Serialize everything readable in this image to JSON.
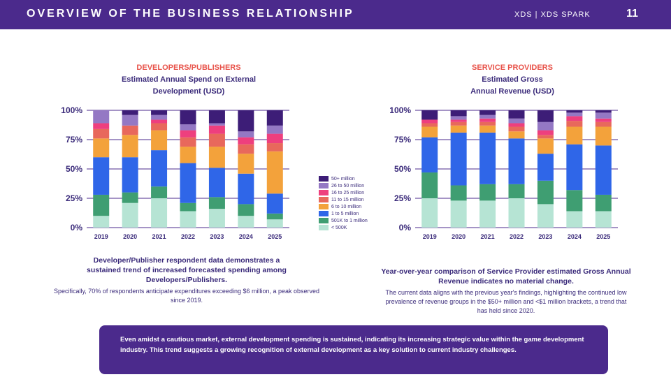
{
  "header": {
    "title": "OVERVIEW OF THE BUSINESS RELATIONSHIP",
    "brand": "XDS  |  XDS SPARK",
    "page_number": "11"
  },
  "colors": {
    "header_bg": "#4b2a8c",
    "category_title": "#e8534a",
    "heading_text": "#3a2a7a"
  },
  "left_panel": {
    "category": "DEVELOPERS/PUBLISHERS",
    "subtitle_line1": "Estimated Annual Spend on External",
    "subtitle_line2": "Development (USD)",
    "caption_bold": "Developer/Publisher respondent data demonstrates a sustained trend of increased forecasted spending among Developers/Publishers.",
    "caption_normal": "Specifically, 70% of respondents anticipate expenditures exceeding $6 million, a peak observed since 2019."
  },
  "right_panel": {
    "category": "SERVICE PROVIDERS",
    "subtitle_line1": "Estimated Gross",
    "subtitle_line2": "Annual Revenue (USD)",
    "caption_bold": "Year-over-year comparison of Service Provider estimated Gross Annual Revenue indicates no material change.",
    "caption_normal": "The current data aligns with the previous year's findings, highlighting the continued low prevalence of revenue groups in the $50+ million and <$1 million brackets, a trend that has held since 2020."
  },
  "legend": [
    {
      "label": "50+ million",
      "color": "#3d1d77"
    },
    {
      "label": "26 to 50 million",
      "color": "#9478c4"
    },
    {
      "label": "16 to 25 million",
      "color": "#ee3f7e"
    },
    {
      "label": "11 to 15 million",
      "color": "#e8685c"
    },
    {
      "label": "6 to 10 million",
      "color": "#f3a23b"
    },
    {
      "label": "1 to 5 million",
      "color": "#2f66e8"
    },
    {
      "label": "501K to 1 million",
      "color": "#3f9e72"
    },
    {
      "label": "< 500K",
      "color": "#b6e4d4"
    }
  ],
  "callout": {
    "text": "Even amidst a cautious market, external development spending is sustained, indicating its increasing strategic value within the game development industry. This trend suggests a growing recognition of external development as a key solution to current industry challenges."
  },
  "chart_data": [
    {
      "type": "bar",
      "stacked": true,
      "title": "Estimated Annual Spend on External Development (USD)",
      "categories": [
        "2019",
        "2020",
        "2021",
        "2022",
        "2023",
        "2024",
        "2025"
      ],
      "yticks": [
        "0%",
        "25%",
        "50%",
        "75%",
        "100%"
      ],
      "ylim": [
        0,
        100
      ],
      "series": [
        {
          "name": "< 500K",
          "values": [
            10,
            21,
            25,
            14,
            16,
            10,
            7
          ]
        },
        {
          "name": "501K to 1 million",
          "values": [
            18,
            9,
            10,
            7,
            10,
            10,
            5
          ]
        },
        {
          "name": "1 to 5 million",
          "values": [
            32,
            30,
            31,
            34,
            25,
            26,
            17
          ]
        },
        {
          "name": "6 to 10 million",
          "values": [
            16,
            19,
            17,
            14,
            18,
            17,
            36
          ]
        },
        {
          "name": "11 to 15 million",
          "values": [
            8,
            8,
            6,
            8,
            11,
            8,
            7
          ]
        },
        {
          "name": "16 to 25 million",
          "values": [
            5,
            0,
            3,
            6,
            7,
            6,
            8
          ]
        },
        {
          "name": "26 to 50 million",
          "values": [
            11,
            9,
            4,
            5,
            2,
            5,
            7
          ]
        },
        {
          "name": "50+ million",
          "values": [
            0,
            4,
            4,
            12,
            11,
            18,
            13
          ]
        }
      ]
    },
    {
      "type": "bar",
      "stacked": true,
      "title": "Estimated Gross Annual Revenue (USD)",
      "categories": [
        "2019",
        "2020",
        "2021",
        "2022",
        "2023",
        "2024",
        "2025"
      ],
      "yticks": [
        "0%",
        "25%",
        "50%",
        "75%",
        "100%"
      ],
      "ylim": [
        0,
        100
      ],
      "series": [
        {
          "name": "< 500K",
          "values": [
            25,
            23,
            23,
            25,
            20,
            14,
            14
          ]
        },
        {
          "name": "501K to 1 million",
          "values": [
            22,
            13,
            14,
            12,
            20,
            18,
            14
          ]
        },
        {
          "name": "1 to 5 million",
          "values": [
            30,
            45,
            44,
            39,
            23,
            39,
            42
          ]
        },
        {
          "name": "6 to 10 million",
          "values": [
            9,
            6,
            6,
            6,
            13,
            15,
            16
          ]
        },
        {
          "name": "11 to 15 million",
          "values": [
            3,
            3,
            3,
            4,
            3,
            5,
            4
          ]
        },
        {
          "name": "16 to 25 million",
          "values": [
            3,
            2,
            3,
            3,
            4,
            4,
            3
          ]
        },
        {
          "name": "26 to 50 million",
          "values": [
            0,
            3,
            3,
            4,
            7,
            3,
            5
          ]
        },
        {
          "name": "50+ million",
          "values": [
            8,
            5,
            4,
            7,
            10,
            2,
            2
          ]
        }
      ]
    }
  ]
}
